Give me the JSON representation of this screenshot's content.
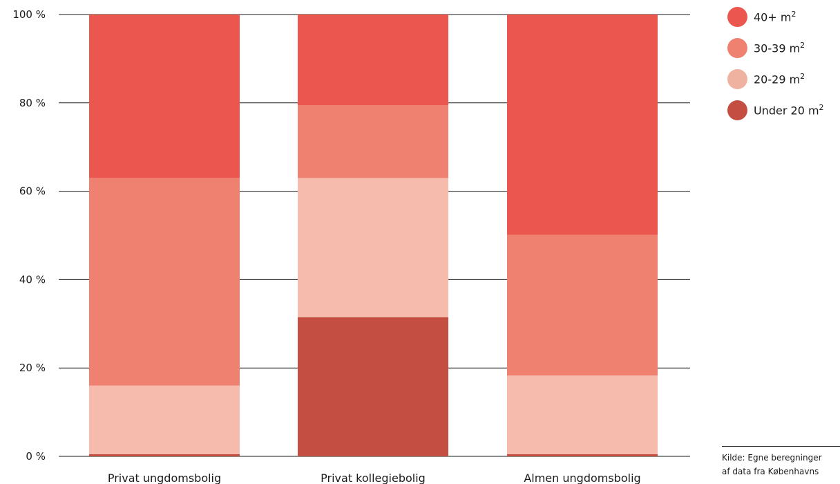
{
  "chart_data": {
    "type": "bar",
    "stacked": true,
    "title": "",
    "xlabel": "",
    "ylabel": "",
    "ylim": [
      0,
      100
    ],
    "yticks": [
      "0 %",
      "20 %",
      "40 %",
      "60 %",
      "80 %",
      "100 %"
    ],
    "categories": [
      "Privat ungdomsbolig",
      "Privat kollegiebolig",
      "Almen ungdomsbolig"
    ],
    "series": [
      {
        "name": "Under 20 m²",
        "color": "#c44e42",
        "values": [
          0.5,
          31.5,
          0.5
        ]
      },
      {
        "name": "20-29 m²",
        "color": "#f7bbad",
        "values": [
          15.5,
          31.5,
          17.8
        ]
      },
      {
        "name": "30-39 m²",
        "color": "#ef8171",
        "values": [
          47,
          16.5,
          31.8
        ]
      },
      {
        "name": "40+ m²",
        "color": "#eb574e",
        "values": [
          37,
          20.5,
          49.9
        ]
      }
    ],
    "legend": {
      "position": "right",
      "order": [
        3,
        2,
        1,
        0
      ],
      "items": [
        {
          "base": "40+ m",
          "sup": "2",
          "color": "#eb574e"
        },
        {
          "base": "30-39 m",
          "sup": "2",
          "color": "#ef8171"
        },
        {
          "base": "20-29 m",
          "sup": "2",
          "color": "#efb2a0"
        },
        {
          "base": "Under 20 m",
          "sup": "2",
          "color": "#c44e42"
        }
      ]
    },
    "grid": true
  },
  "source": {
    "line1": "Kilde: Egne beregninger",
    "line2": "af data fra Københavns"
  }
}
